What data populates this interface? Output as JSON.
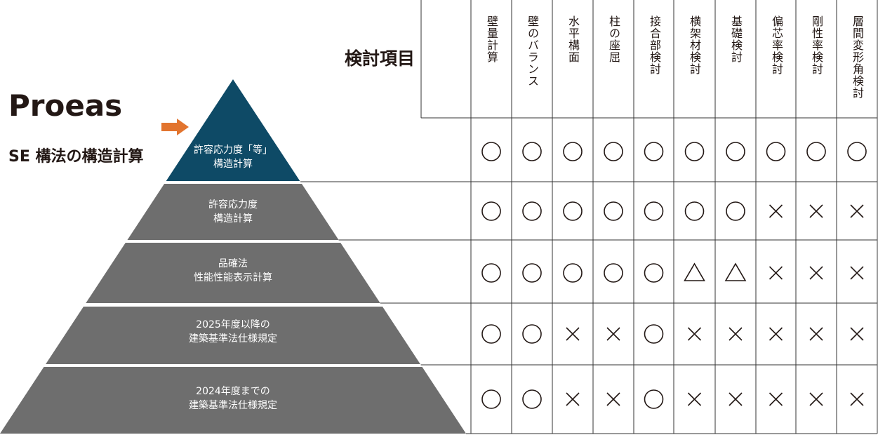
{
  "brand": "Proeas",
  "subtitle": "SE 構法の構造計算",
  "items_title": "検討項目",
  "colors": {
    "top_level": "#0e4a66",
    "levels": "#6e6e6e",
    "arrow": "#e2742e",
    "grid": "#333333"
  },
  "columns": [
    "壁量計算",
    "壁のバランス",
    "水平構面",
    "柱の座屈",
    "接合部検討",
    "横架材検討",
    "基礎検討",
    "偏芯率検討",
    "剛性率検討",
    "層間変形角検討"
  ],
  "levels": [
    {
      "line1": "許容応力度「等」",
      "line2": "構造計算",
      "highlighted": true,
      "marks": [
        "○",
        "○",
        "○",
        "○",
        "○",
        "○",
        "○",
        "○",
        "○",
        "○"
      ]
    },
    {
      "line1": "許容応力度",
      "line2": "構造計算",
      "highlighted": false,
      "marks": [
        "○",
        "○",
        "○",
        "○",
        "○",
        "○",
        "○",
        "×",
        "×",
        "×"
      ]
    },
    {
      "line1": "品確法",
      "line2": "性能性能表示計算",
      "highlighted": false,
      "marks": [
        "○",
        "○",
        "○",
        "○",
        "○",
        "△",
        "△",
        "×",
        "×",
        "×"
      ]
    },
    {
      "line1": "2025年度以降の",
      "line2": "建築基準法仕様規定",
      "highlighted": false,
      "marks": [
        "○",
        "○",
        "×",
        "×",
        "○",
        "×",
        "×",
        "×",
        "×",
        "×"
      ]
    },
    {
      "line1": "2024年度までの",
      "line2": "建築基準法仕様規定",
      "highlighted": false,
      "marks": [
        "○",
        "○",
        "×",
        "×",
        "○",
        "×",
        "×",
        "×",
        "×",
        "×"
      ]
    }
  ]
}
